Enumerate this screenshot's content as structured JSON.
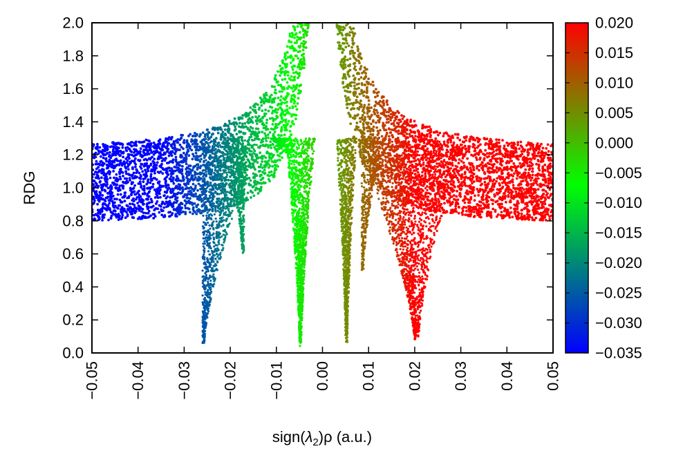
{
  "chart_data": {
    "type": "scatter",
    "title": "",
    "xlabel": {
      "prefix": "sign(",
      "lambda": "λ",
      "sub": "2",
      "rho": ")ρ",
      "unit": " (a.u.)"
    },
    "ylabel": "RDG",
    "xlim": [
      -0.05,
      0.05
    ],
    "ylim": [
      0.0,
      2.0
    ],
    "x_ticks": [
      "−0.05",
      "−0.04",
      "−0.03",
      "−0.02",
      "−0.01",
      "0.00",
      "0.01",
      "0.02",
      "0.03",
      "0.04",
      "0.05"
    ],
    "x_tick_values": [
      -0.05,
      -0.04,
      -0.03,
      -0.02,
      -0.01,
      0.0,
      0.01,
      0.02,
      0.03,
      0.04,
      0.05
    ],
    "y_ticks": [
      "0.0",
      "0.2",
      "0.4",
      "0.6",
      "0.8",
      "1.0",
      "1.2",
      "1.4",
      "1.6",
      "1.8",
      "2.0"
    ],
    "y_tick_values": [
      0.0,
      0.2,
      0.4,
      0.6,
      0.8,
      1.0,
      1.2,
      1.4,
      1.6,
      1.8,
      2.0
    ],
    "grid": false,
    "colorbar": {
      "range": [
        -0.035,
        0.02
      ],
      "ticks": [
        "0.020",
        "0.015",
        "0.010",
        "0.005",
        "0.000",
        "−0.005",
        "−0.010",
        "−0.015",
        "−0.020",
        "−0.025",
        "−0.030",
        "−0.035"
      ],
      "tick_values": [
        0.02,
        0.015,
        0.01,
        0.005,
        0.0,
        -0.005,
        -0.01,
        -0.015,
        -0.02,
        -0.025,
        -0.03,
        -0.035
      ],
      "colors": [
        "#0000ff",
        "#00ff00",
        "#ff0000"
      ],
      "color_stops": [
        -0.035,
        -0.007,
        0.02
      ]
    },
    "features": [
      {
        "name": "main band",
        "x_range": [
          -0.05,
          0.05
        ],
        "rdg_at_edges": [
          0.8,
          1.23
        ]
      },
      {
        "name": "spike",
        "x_center": -0.026,
        "min_rdg": 0.06
      },
      {
        "name": "spike",
        "x_center": -0.005,
        "min_rdg": 0.04
      },
      {
        "name": "spike",
        "x_center": 0.005,
        "min_rdg": 0.06
      },
      {
        "name": "spike",
        "x_center": 0.02,
        "min_rdg": 0.08
      }
    ]
  }
}
